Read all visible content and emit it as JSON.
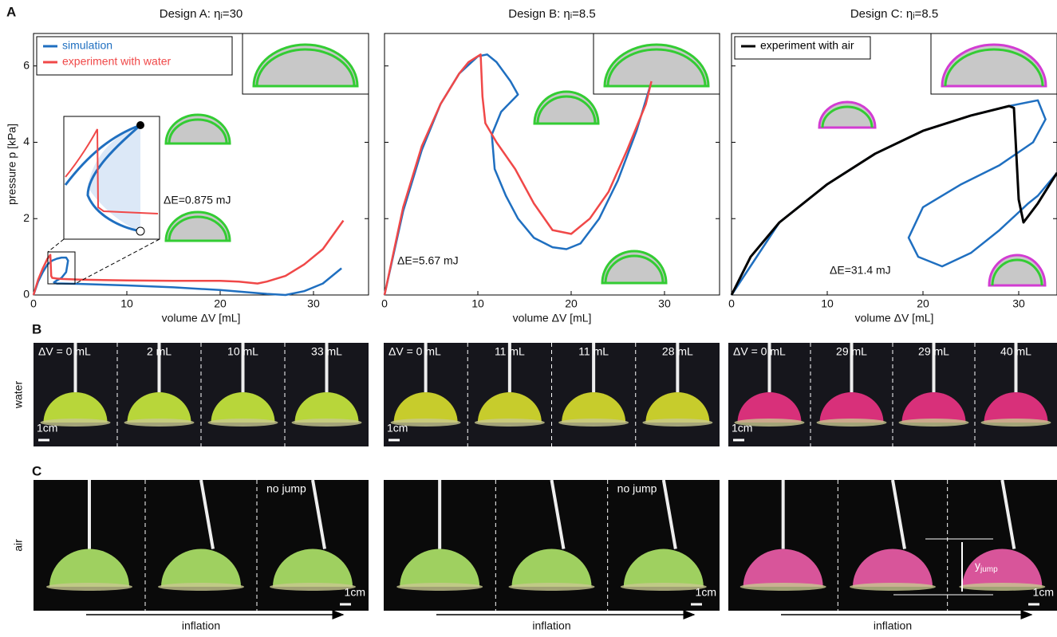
{
  "panel_labels": [
    "A",
    "B",
    "C"
  ],
  "chart_data": [
    {
      "type": "line",
      "title": "Design A: ηᵢ=30",
      "x_label": "volume ΔV [mL]",
      "y_label": "pressure p [kPa]",
      "xlim": [
        0,
        35.9
      ],
      "ylim": [
        0,
        6.85
      ],
      "xticks": [
        0,
        10,
        20,
        30
      ],
      "yticks": [
        0,
        2,
        4,
        6
      ],
      "legend": "upper left",
      "annotations": [
        "ΔE=0.875 mJ"
      ],
      "series": [
        {
          "name": "simulation",
          "color": "#1f6fc0",
          "x": [
            0,
            0.5,
            1,
            1.5,
            2,
            2.5,
            3,
            3.5,
            3.7,
            3.5,
            3,
            2.5,
            2.2,
            2.5,
            3,
            5,
            10,
            15,
            20,
            25,
            27,
            29,
            31,
            33
          ],
          "values": [
            0,
            0.35,
            0.6,
            0.8,
            0.9,
            0.95,
            0.98,
            0.98,
            0.9,
            0.6,
            0.45,
            0.38,
            0.33,
            0.3,
            0.3,
            0.29,
            0.25,
            0.2,
            0.13,
            0.03,
            0,
            0.1,
            0.3,
            0.7
          ]
        },
        {
          "name": "experiment with water",
          "color": "#f04848",
          "x": [
            0,
            0.5,
            1,
            1.5,
            1.8,
            1.9,
            2,
            2.5,
            3,
            5,
            10,
            15,
            20,
            22,
            24,
            25,
            27,
            29,
            31,
            33.2
          ],
          "values": [
            0,
            0.4,
            0.7,
            0.95,
            1.05,
            0.5,
            0.45,
            0.43,
            0.42,
            0.4,
            0.38,
            0.37,
            0.37,
            0.35,
            0.3,
            0.35,
            0.5,
            0.8,
            1.2,
            1.95
          ]
        }
      ]
    },
    {
      "type": "line",
      "title": "Design B: ηᵢ=8.5",
      "x_label": "volume ΔV [mL]",
      "xlim": [
        0,
        35.9
      ],
      "ylim": [
        0,
        6.85
      ],
      "xticks": [
        0,
        10,
        20,
        30
      ],
      "annotations": [
        "ΔE=5.67 mJ"
      ],
      "series": [
        {
          "color": "#1f6fc0",
          "x": [
            0,
            2,
            4,
            6,
            8,
            10,
            11,
            12,
            13.5,
            14.3,
            12.5,
            11.5,
            11.8,
            13,
            14.3,
            16,
            18,
            19.5,
            21,
            23,
            25,
            27,
            28.5
          ],
          "values": [
            0,
            2.2,
            3.8,
            5,
            5.8,
            6.25,
            6.3,
            6.1,
            5.6,
            5.25,
            4.8,
            4.2,
            3.3,
            2.6,
            2,
            1.5,
            1.25,
            1.2,
            1.35,
            2,
            3,
            4.3,
            5.5
          ]
        },
        {
          "color": "#f04848",
          "x": [
            0,
            2,
            4,
            6,
            8,
            9,
            10.3,
            10.5,
            10.8,
            12,
            14,
            16,
            18,
            20,
            22,
            24,
            26,
            28,
            28.6
          ],
          "values": [
            0,
            2.3,
            3.9,
            5,
            5.8,
            6.1,
            6.3,
            5.2,
            4.5,
            4,
            3.3,
            2.4,
            1.7,
            1.6,
            2,
            2.7,
            3.8,
            5,
            5.6
          ]
        }
      ]
    },
    {
      "type": "line",
      "title": "Design C: ηᵢ=8.5",
      "x_label": "volume ΔV [mL]",
      "xlim": [
        0,
        34
      ],
      "ylim": [
        0,
        6.85
      ],
      "xticks": [
        0,
        10,
        20,
        30
      ],
      "legend": "upper left",
      "annotations": [
        "ΔE=31.4 mJ"
      ],
      "series": [
        {
          "color": "#1f6fc0",
          "x": [
            0,
            5,
            10,
            15,
            20,
            25,
            29,
            32,
            32.8,
            31.5,
            28,
            24,
            20,
            18.5,
            19.5,
            22,
            25,
            28,
            31,
            32,
            34
          ],
          "values": [
            0,
            1.9,
            2.9,
            3.7,
            4.3,
            4.7,
            4.95,
            5.1,
            4.6,
            4,
            3.4,
            2.9,
            2.3,
            1.5,
            1,
            0.75,
            1.1,
            1.7,
            2.4,
            2.6,
            3.2
          ]
        },
        {
          "name": "experiment with air",
          "color": "#000000",
          "x": [
            0,
            2,
            5,
            10,
            15,
            20,
            25,
            29,
            29.5,
            30,
            30.5,
            32,
            34
          ],
          "values": [
            0,
            1,
            1.9,
            2.9,
            3.7,
            4.3,
            4.7,
            4.95,
            4.9,
            2.5,
            1.9,
            2.4,
            3.2
          ]
        }
      ]
    }
  ],
  "photos": {
    "water_label": "water",
    "air_label": "air",
    "water_frames": [
      [
        "ΔV = 0 mL",
        "2 mL",
        "10 mL",
        "33 mL"
      ],
      [
        "ΔV = 0 mL",
        "11 mL",
        "11 mL",
        "28 mL"
      ],
      [
        "ΔV = 0 mL",
        "29 mL",
        "29 mL",
        "40 mL"
      ]
    ],
    "air_notes": [
      "no jump",
      "no jump"
    ],
    "scale": "1cm",
    "arrow": "inflation",
    "jump_label": [
      "y",
      "jump"
    ]
  }
}
